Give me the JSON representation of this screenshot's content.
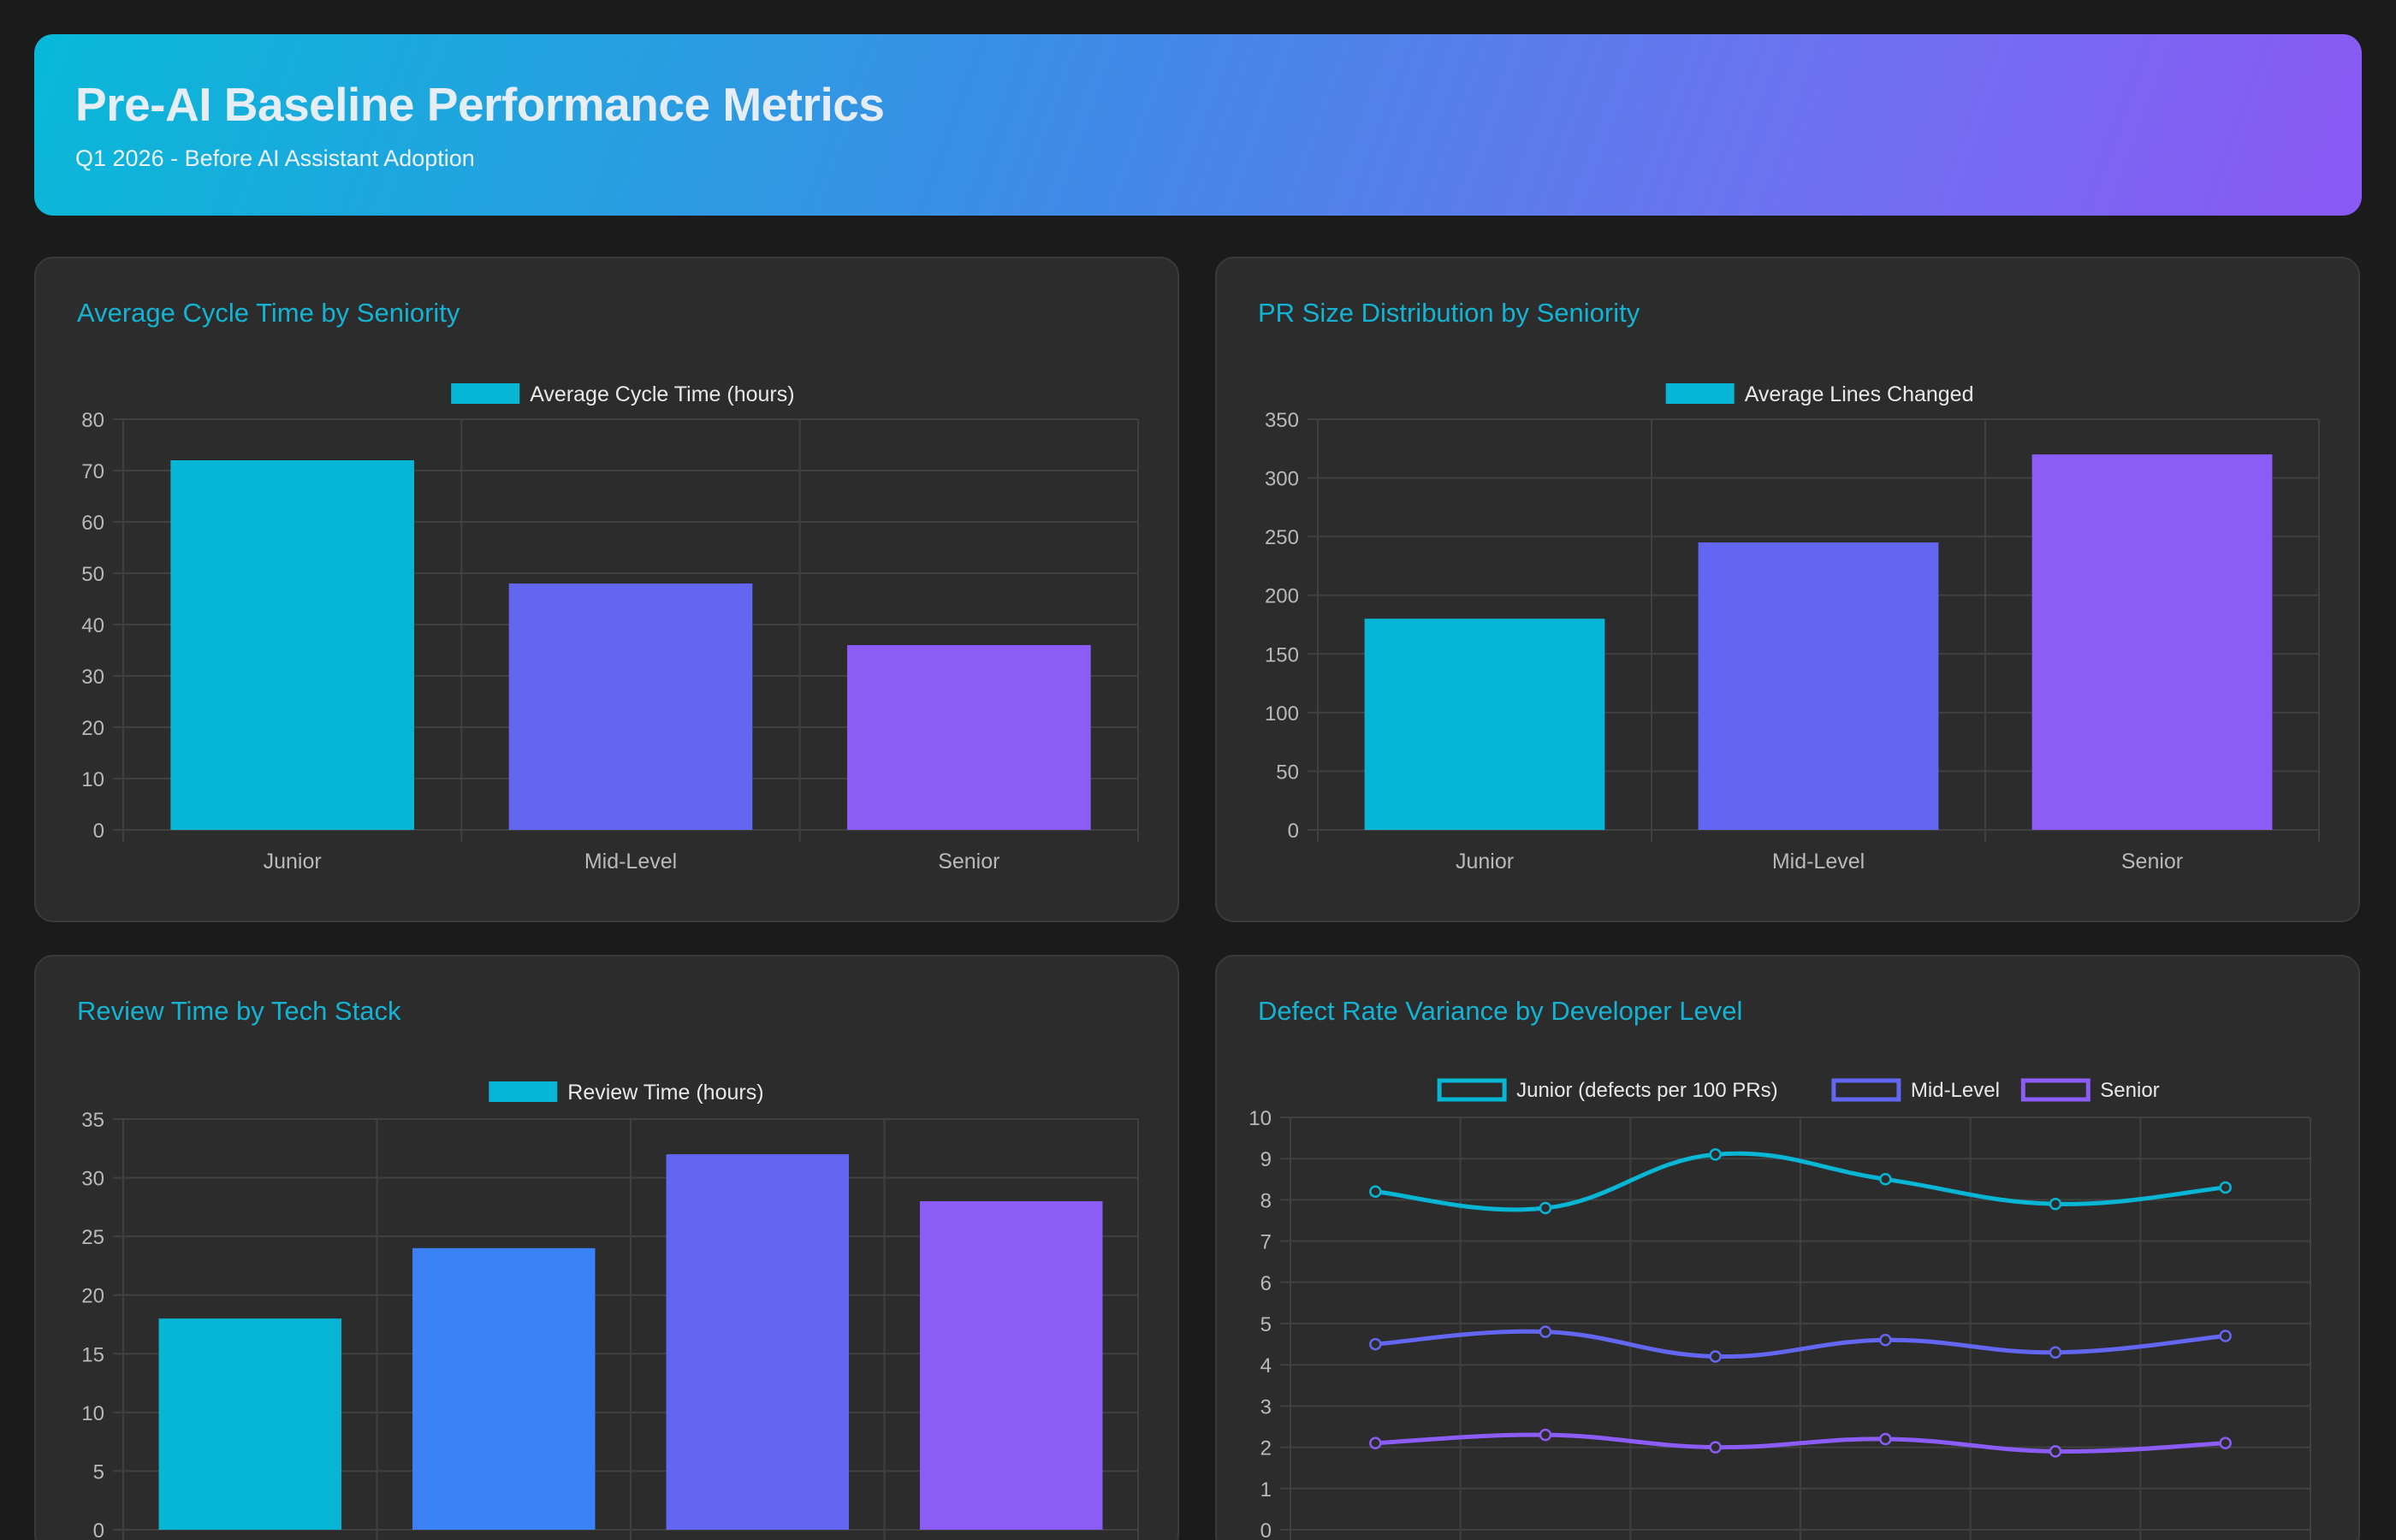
{
  "header": {
    "title": "Pre-AI Baseline Performance Metrics",
    "subtitle": "Q1 2026 - Before AI Assistant Adoption"
  },
  "colors": {
    "cyan": "#06b6d4",
    "blue": "#3b82f6",
    "indigo": "#6366f1",
    "violet": "#8b5cf6",
    "title": "#13b3d3"
  },
  "chart_data": [
    {
      "id": "cycle",
      "type": "bar",
      "title": "Average Cycle Time by Seniority",
      "categories": [
        "Junior",
        "Mid-Level",
        "Senior"
      ],
      "series": [
        {
          "name": "Average Cycle Time (hours)",
          "values": [
            72,
            48,
            36
          ]
        }
      ],
      "bar_colors": [
        "#06b6d4",
        "#6366f1",
        "#8b5cf6"
      ],
      "ylim": [
        0,
        80
      ],
      "yticks": [
        0,
        10,
        20,
        30,
        40,
        50,
        60,
        70,
        80
      ],
      "grid": true,
      "legend": "top-center"
    },
    {
      "id": "prsize",
      "type": "bar",
      "title": "PR Size Distribution by Seniority",
      "categories": [
        "Junior",
        "Mid-Level",
        "Senior"
      ],
      "series": [
        {
          "name": "Average Lines Changed",
          "values": [
            180,
            245,
            320
          ]
        }
      ],
      "bar_colors": [
        "#06b6d4",
        "#6366f1",
        "#8b5cf6"
      ],
      "ylim": [
        0,
        350
      ],
      "yticks": [
        0,
        50,
        100,
        150,
        200,
        250,
        300,
        350
      ],
      "grid": true,
      "legend": "top-center"
    },
    {
      "id": "review",
      "type": "bar",
      "title": "Review Time by Tech Stack",
      "categories": [
        "",
        "",
        "",
        ""
      ],
      "series": [
        {
          "name": "Review Time (hours)",
          "values": [
            18,
            24,
            32,
            28
          ]
        }
      ],
      "bar_colors": [
        "#06b6d4",
        "#3b82f6",
        "#6366f1",
        "#8b5cf6"
      ],
      "ylim": [
        0,
        35
      ],
      "yticks": [
        0,
        5,
        10,
        15,
        20,
        25,
        30,
        35
      ],
      "grid": true,
      "legend": "top-center"
    },
    {
      "id": "defect",
      "type": "line",
      "title": "Defect Rate Variance by Developer Level",
      "x": [
        "",
        "",
        "",
        "",
        "",
        ""
      ],
      "series": [
        {
          "name": "Junior (defects per 100 PRs)",
          "values": [
            8.2,
            7.8,
            9.1,
            8.5,
            7.9,
            8.3
          ],
          "color": "#06b6d4"
        },
        {
          "name": "Mid-Level",
          "values": [
            4.5,
            4.8,
            4.2,
            4.6,
            4.3,
            4.7
          ],
          "color": "#6366f1"
        },
        {
          "name": "Senior",
          "values": [
            2.1,
            2.3,
            2.0,
            2.2,
            1.9,
            2.1
          ],
          "color": "#8b5cf6"
        }
      ],
      "ylim": [
        0,
        10
      ],
      "yticks": [
        0,
        1,
        2,
        3,
        4,
        5,
        6,
        7,
        8,
        9,
        10
      ],
      "grid": true,
      "legend": "top-center"
    }
  ]
}
